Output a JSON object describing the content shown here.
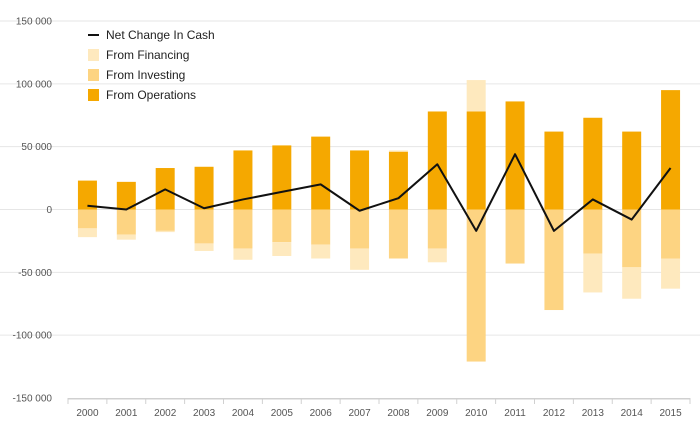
{
  "chart_data": {
    "type": "bar",
    "stacked": true,
    "categories": [
      "2000",
      "2001",
      "2002",
      "2003",
      "2004",
      "2005",
      "2006",
      "2007",
      "2008",
      "2009",
      "2010",
      "2011",
      "2012",
      "2013",
      "2014",
      "2015"
    ],
    "series": [
      {
        "name": "From Operations",
        "kind": "bar",
        "color": "#F5A800",
        "values": [
          23000,
          22000,
          33000,
          34000,
          47000,
          51000,
          58000,
          47000,
          46000,
          78000,
          78000,
          86000,
          62000,
          73000,
          62000,
          95000
        ]
      },
      {
        "name": "From Investing",
        "kind": "bar",
        "color": "#FDD482",
        "values": [
          -15000,
          -20000,
          -17000,
          -27000,
          -31000,
          -26000,
          -28000,
          -31000,
          -39000,
          -31000,
          -121000,
          -43000,
          -80000,
          -35000,
          -46000,
          -39000
        ]
      },
      {
        "name": "From Financing",
        "kind": "bar",
        "color": "#FEE9BE",
        "values": [
          -7000,
          -4000,
          -1000,
          -6000,
          -9000,
          -11000,
          -11000,
          -17000,
          1000,
          -11000,
          25000,
          0,
          0,
          -31000,
          -25000,
          -24000
        ]
      },
      {
        "name": "Net Change In Cash",
        "kind": "line",
        "color": "#111111",
        "values": [
          3000,
          0,
          16000,
          1000,
          8000,
          14000,
          20000,
          -1000,
          9000,
          36000,
          -17000,
          44000,
          -17000,
          8000,
          -8000,
          33000
        ]
      }
    ],
    "yaxis": {
      "min": -150000,
      "max": 150000,
      "ticks": [
        150000,
        100000,
        50000,
        0,
        -50000,
        -100000,
        -150000
      ],
      "tick_labels": [
        "150 000",
        "100 000",
        "50 000",
        "0",
        "-50 000",
        "-100 000",
        "-150 000"
      ]
    },
    "legend": {
      "position": "top-left",
      "order": [
        "Net Change In Cash",
        "From Financing",
        "From Investing",
        "From Operations"
      ]
    },
    "grid": true
  }
}
